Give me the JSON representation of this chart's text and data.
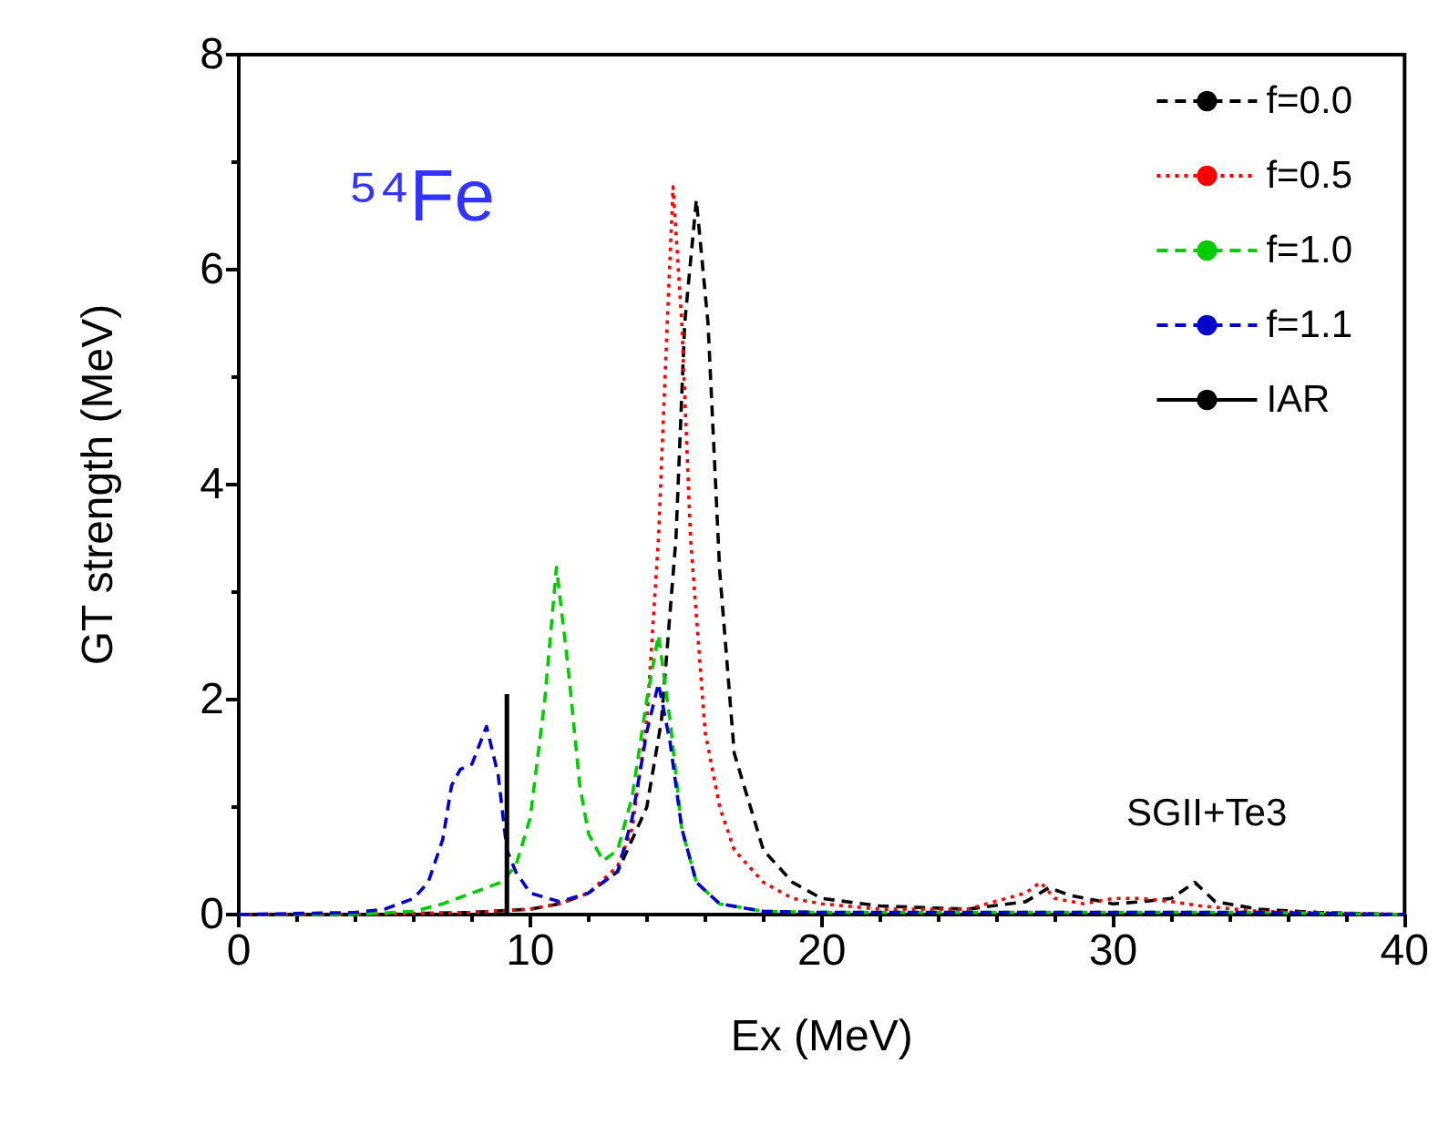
{
  "chart_data": {
    "type": "line",
    "xlabel": "Ex (MeV)",
    "ylabel": "GT strength (MeV)",
    "xlim": [
      0,
      40
    ],
    "xticks": [
      0,
      10,
      20,
      30,
      40
    ],
    "ylim": [
      0,
      8
    ],
    "yticks": [
      0,
      2,
      4,
      6,
      8
    ],
    "grid": false,
    "legend": "top right",
    "marker": "none",
    "annotations": [
      "⁵⁴Fe",
      "SGII+Te3"
    ],
    "series": [
      {
        "name": "f=0.0",
        "color": "#000000",
        "line_style": "dashed",
        "x": [
          0,
          4,
          8,
          10,
          11,
          12,
          13,
          14,
          14.5,
          15,
          15.3,
          15.7,
          16.1,
          16.5,
          17,
          18,
          19,
          20,
          22,
          25,
          27,
          27.8,
          28.5,
          30,
          31,
          32,
          32.8,
          33.5,
          35,
          37,
          40
        ],
        "values": [
          0,
          0,
          0.02,
          0.05,
          0.1,
          0.2,
          0.4,
          1.0,
          1.8,
          3.5,
          5.5,
          6.65,
          5.5,
          3.2,
          1.5,
          0.6,
          0.3,
          0.15,
          0.08,
          0.05,
          0.12,
          0.25,
          0.18,
          0.1,
          0.12,
          0.15,
          0.3,
          0.12,
          0.05,
          0.02,
          0
        ]
      },
      {
        "name": "f=0.5",
        "color": "#ff0000",
        "line_style": "dotted",
        "x": [
          0,
          4,
          8,
          10,
          11,
          12,
          13,
          13.5,
          14,
          14.4,
          14.7,
          14.9,
          15.2,
          15.5,
          16,
          16.5,
          17,
          18,
          19,
          20,
          22,
          25,
          27,
          27.5,
          28,
          29,
          30,
          31,
          32,
          33,
          35,
          40
        ],
        "values": [
          0,
          0,
          0.02,
          0.05,
          0.1,
          0.2,
          0.45,
          0.8,
          1.8,
          3.5,
          5.5,
          6.77,
          5.5,
          3.5,
          1.7,
          1.0,
          0.6,
          0.3,
          0.15,
          0.1,
          0.05,
          0.05,
          0.2,
          0.3,
          0.15,
          0.1,
          0.15,
          0.15,
          0.12,
          0.08,
          0.03,
          0
        ]
      },
      {
        "name": "f=1.0",
        "color": "#00cc00",
        "line_style": "dashed",
        "x": [
          0,
          4,
          6,
          7,
          8,
          9,
          9.5,
          10,
          10.5,
          10.9,
          11.3,
          11.7,
          12,
          12.5,
          13,
          13.5,
          14,
          14.4,
          14.8,
          15.2,
          15.7,
          16.5,
          18,
          20,
          25,
          30,
          35,
          40
        ],
        "values": [
          0,
          0,
          0.03,
          0.1,
          0.2,
          0.3,
          0.45,
          0.9,
          2.0,
          3.23,
          2.3,
          1.2,
          0.75,
          0.5,
          0.6,
          1.1,
          2.0,
          2.6,
          1.8,
          0.8,
          0.3,
          0.1,
          0.03,
          0.02,
          0.02,
          0.02,
          0.02,
          0
        ]
      },
      {
        "name": "f=1.1",
        "color": "#0000cc",
        "line_style": "dashed",
        "x": [
          0,
          4,
          5,
          6,
          6.5,
          7,
          7.3,
          7.6,
          8,
          8.5,
          8.9,
          9.2,
          9.5,
          10,
          11,
          12,
          13,
          13.5,
          14,
          14.4,
          14.8,
          15.2,
          15.7,
          16.5,
          18,
          20,
          25,
          30,
          35,
          40
        ],
        "values": [
          0,
          0.02,
          0.05,
          0.15,
          0.3,
          0.7,
          1.2,
          1.35,
          1.4,
          1.75,
          1.3,
          0.6,
          0.4,
          0.2,
          0.12,
          0.2,
          0.4,
          0.9,
          1.7,
          2.15,
          1.6,
          0.8,
          0.3,
          0.1,
          0.03,
          0.02,
          0.02,
          0.02,
          0.02,
          0
        ]
      },
      {
        "name": "IAR",
        "color": "#000000",
        "line_style": "solid",
        "x": [
          9.2,
          9.2
        ],
        "values": [
          0,
          2.05
        ]
      }
    ]
  }
}
